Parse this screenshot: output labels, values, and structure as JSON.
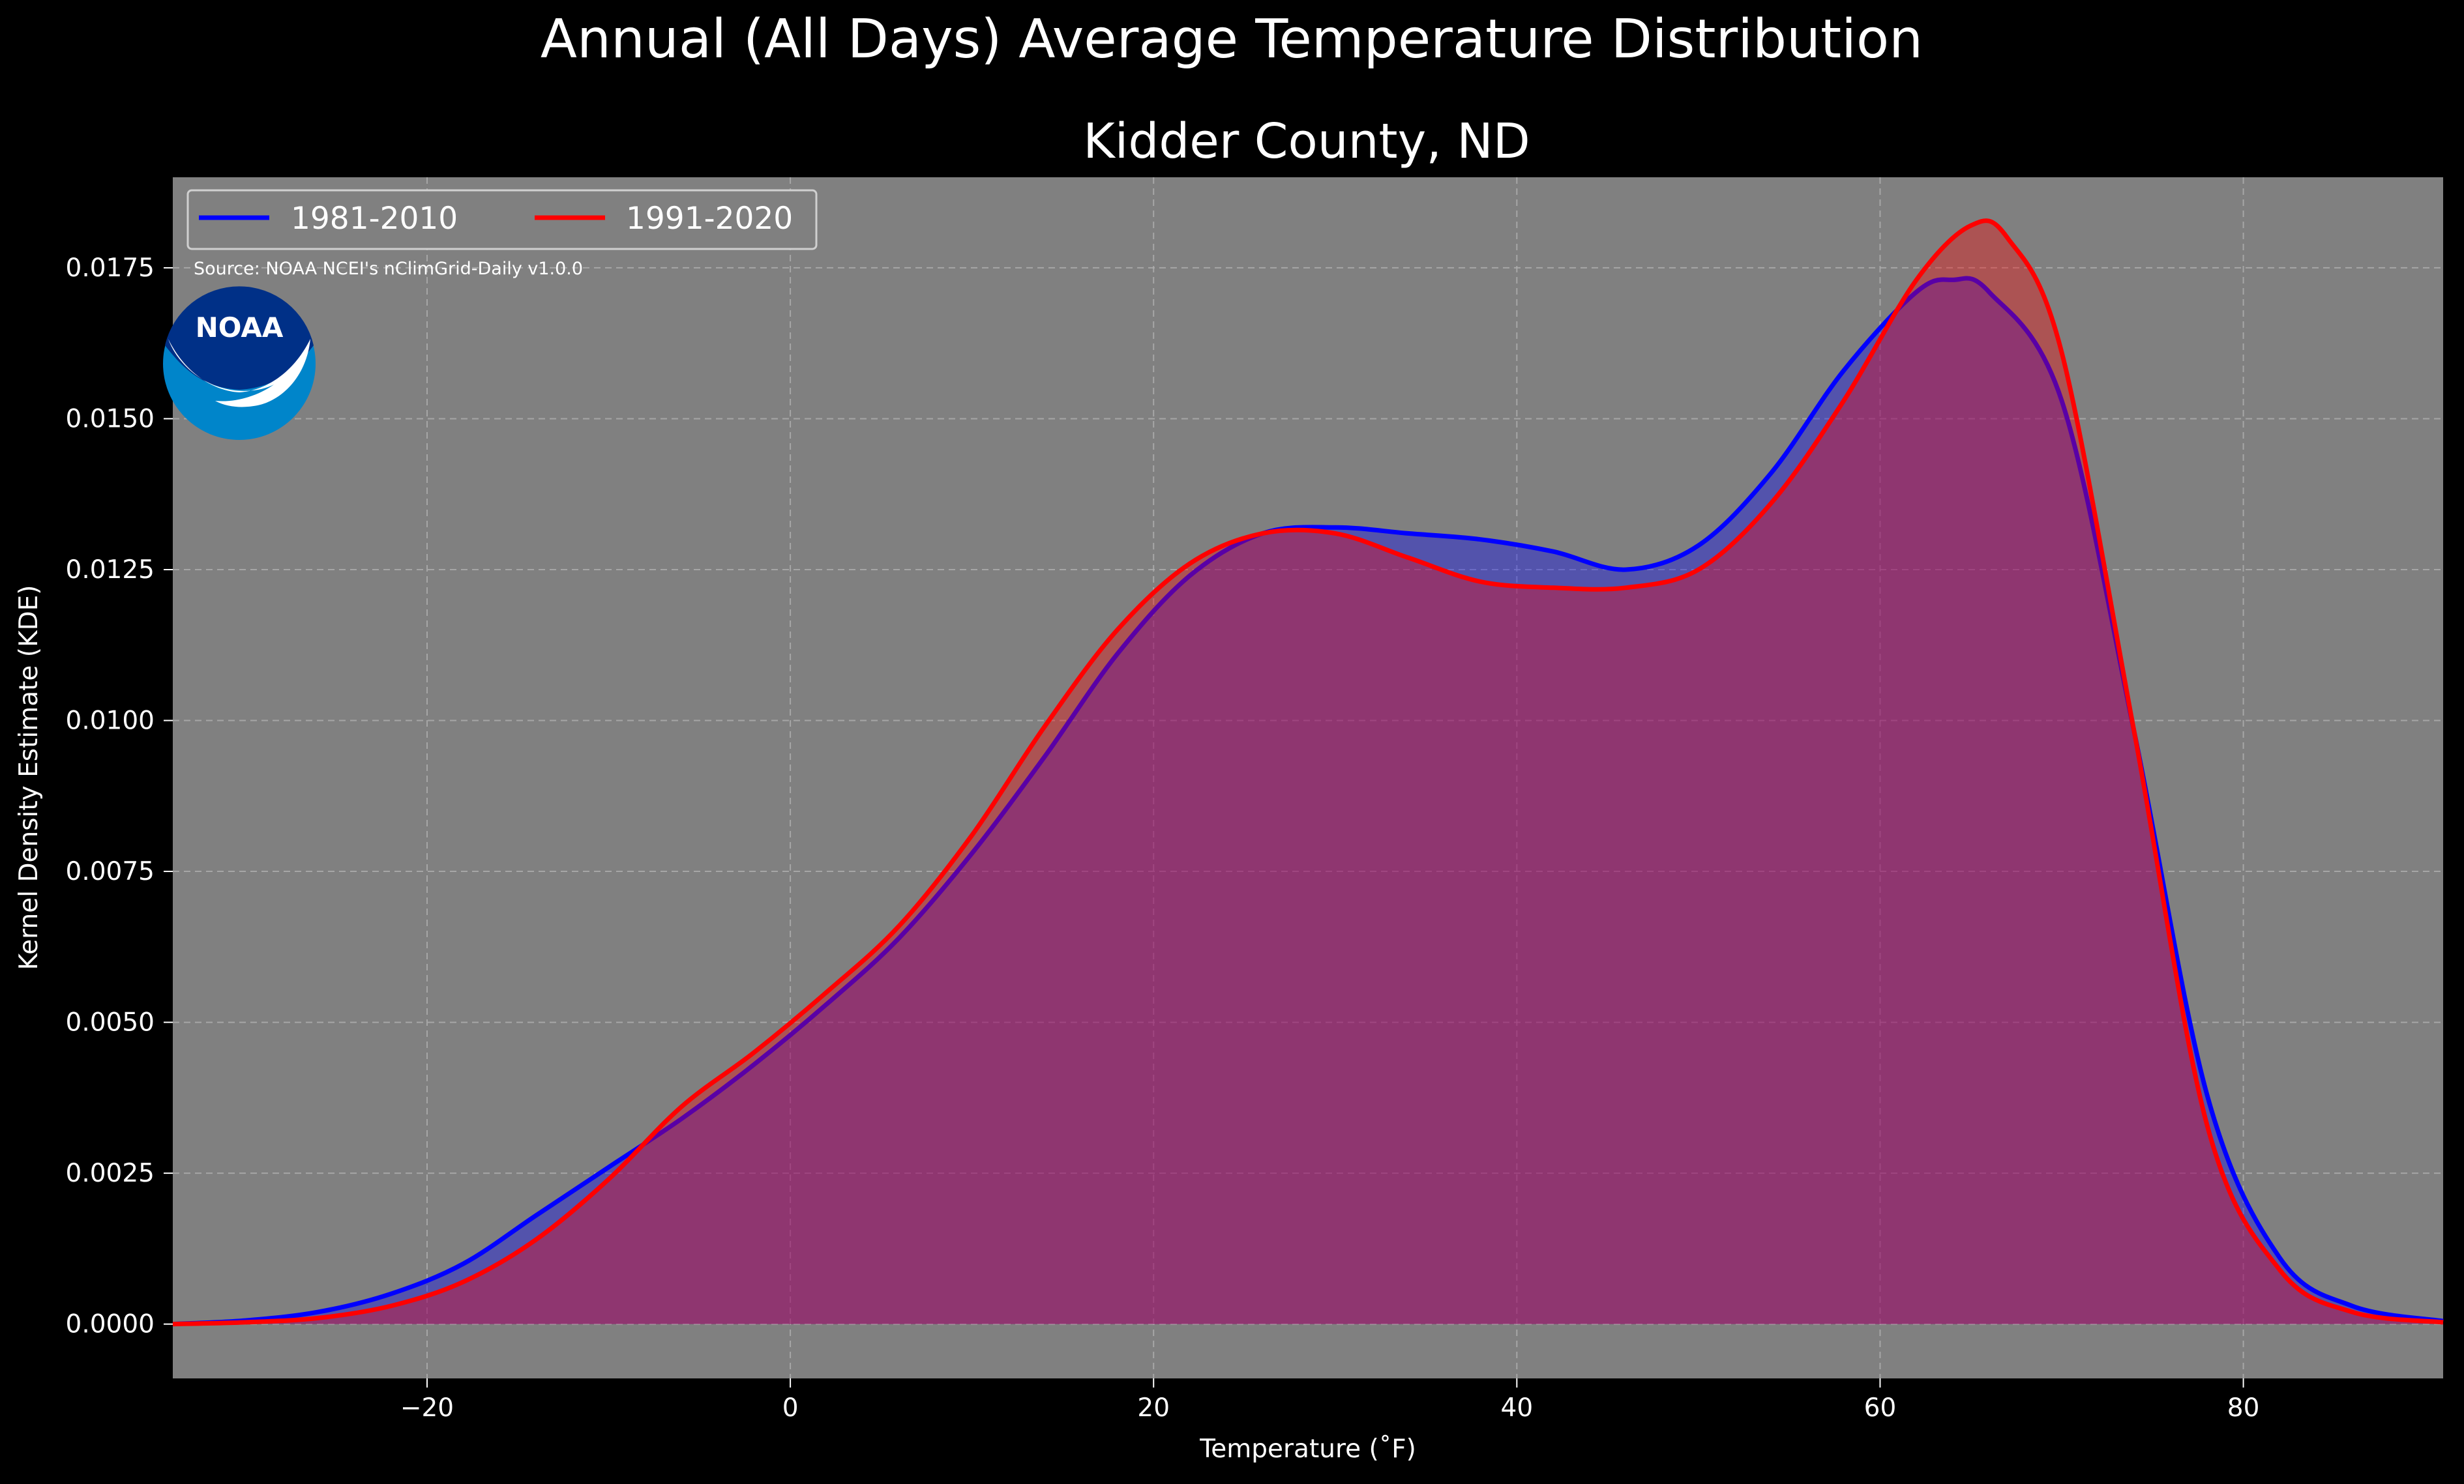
{
  "chart_data": {
    "type": "area",
    "title": "Annual (All Days) Average Temperature Distribution",
    "subtitle": "Kidder County, ND",
    "xlabel": "Temperature (˚F)",
    "ylabel": "Kernel Density Estimate (KDE)",
    "xlim": [
      -34,
      91
    ],
    "ylim": [
      -0.0009,
      0.019
    ],
    "xticks": [
      -20,
      0,
      20,
      40,
      60,
      80
    ],
    "xtick_labels": [
      "−20",
      "0",
      "20",
      "40",
      "60",
      "80"
    ],
    "yticks": [
      0,
      0.0025,
      0.005,
      0.0075,
      0.01,
      0.0125,
      0.015,
      0.0175
    ],
    "ytick_labels": [
      "0.0000",
      "0.0025",
      "0.0050",
      "0.0075",
      "0.0100",
      "0.0125",
      "0.0150",
      "0.0175"
    ],
    "grid": true,
    "legend_position": "top-left",
    "source_note": "Source: NOAA NCEI's nClimGrid-Daily v1.0.0",
    "logo_text": "NOAA",
    "colors": {
      "figure_background": "#000000",
      "plot_background": "#808080",
      "grid": "#b0b0b0",
      "text": "#ffffff",
      "logo_blue": "#0085ca",
      "logo_navy": "#003087"
    },
    "series": [
      {
        "name": "1981-2010",
        "color": "#0000ff",
        "fill_opacity": 0.35,
        "x": [
          -34,
          -30,
          -26,
          -22,
          -18,
          -14,
          -10,
          -6,
          -2,
          2,
          6,
          10,
          14,
          18,
          22,
          26,
          30,
          34,
          38,
          42,
          46,
          50,
          54,
          58,
          62,
          64,
          66,
          70,
          74,
          78,
          82,
          86,
          91
        ],
        "values": [
          0.0,
          6e-05,
          0.0002,
          0.0005,
          0.001,
          0.0018,
          0.0026,
          0.0034,
          0.0043,
          0.0053,
          0.0064,
          0.0078,
          0.0094,
          0.0111,
          0.0124,
          0.0131,
          0.0132,
          0.0131,
          0.013,
          0.0128,
          0.0125,
          0.0129,
          0.0141,
          0.0158,
          0.0171,
          0.0173,
          0.0171,
          0.0153,
          0.0098,
          0.0038,
          0.0011,
          0.0003,
          5e-05
        ]
      },
      {
        "name": "1991-2020",
        "color": "#ff0000",
        "fill_opacity": 0.35,
        "x": [
          -34,
          -30,
          -26,
          -22,
          -18,
          -14,
          -10,
          -6,
          -2,
          2,
          6,
          10,
          14,
          18,
          22,
          26,
          30,
          34,
          38,
          42,
          46,
          50,
          54,
          58,
          62,
          65,
          67,
          70,
          74,
          78,
          82,
          86,
          91
        ],
        "values": [
          0.0,
          3e-05,
          0.0001,
          0.0003,
          0.0007,
          0.0014,
          0.0024,
          0.0036,
          0.0045,
          0.0055,
          0.0066,
          0.0081,
          0.0099,
          0.0115,
          0.0126,
          0.0131,
          0.0131,
          0.0127,
          0.0123,
          0.0122,
          0.0122,
          0.0125,
          0.0136,
          0.0153,
          0.0173,
          0.0182,
          0.018,
          0.0161,
          0.0098,
          0.0033,
          0.0009,
          0.0002,
          3e-05
        ]
      }
    ]
  }
}
